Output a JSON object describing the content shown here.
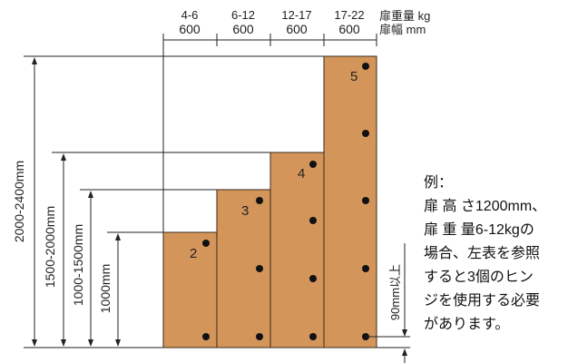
{
  "header": {
    "columns": [
      {
        "weight": "4-6",
        "width": "600"
      },
      {
        "weight": "6-12",
        "width": "600"
      },
      {
        "weight": "12-17",
        "width": "600"
      },
      {
        "weight": "17-22",
        "width": "600"
      }
    ],
    "weight_label": "扉重量 kg",
    "width_label": "扉幅 mm"
  },
  "bars": [
    {
      "hinges": "2",
      "hinge_count": 2
    },
    {
      "hinges": "3",
      "hinge_count": 3
    },
    {
      "hinges": "4",
      "hinge_count": 4
    },
    {
      "hinges": "5",
      "hinge_count": 5
    }
  ],
  "height_ranges": [
    "1000mm",
    "1000-1500mm",
    "1500-2000mm",
    "2000-2400mm"
  ],
  "offset_label": "90mm以上",
  "example": {
    "title": "例：",
    "lines": [
      "扉 高 さ1200mm、",
      "扉 重 量6-12kgの",
      "場合、左表を参照",
      "すると3個のヒン",
      "ジを使用する必要",
      "があります。"
    ]
  },
  "colors": {
    "door": "#D4955A",
    "outline": "#3a2a1a",
    "hinge": "#111111"
  }
}
